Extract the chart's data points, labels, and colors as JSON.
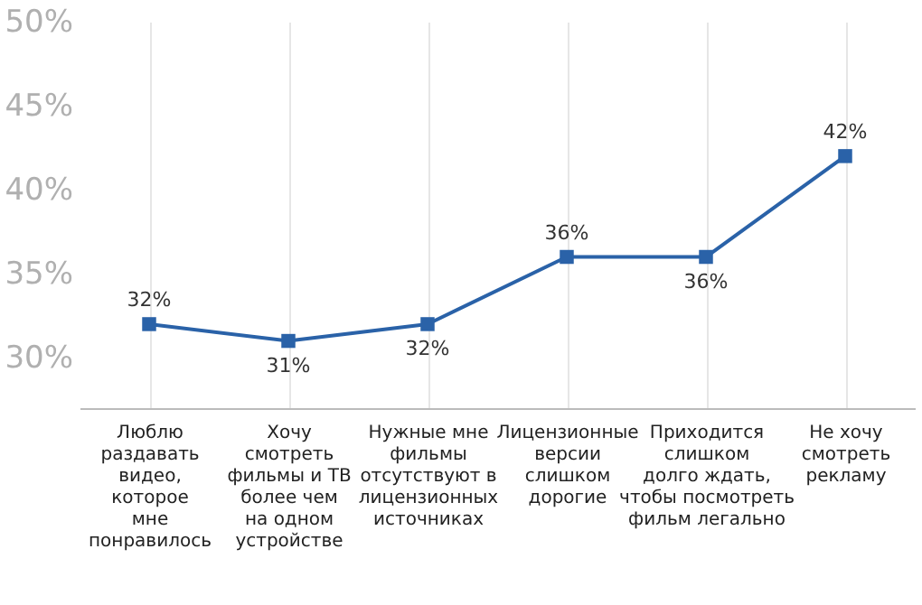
{
  "chart_data": {
    "type": "line",
    "categories": [
      "Люблю\nраздавать\nвидео,\nкоторое\nмне\nпонравилось",
      "Хочу\nсмотреть\nфильмы и ТВ\nболее чем\nна одном\nустройстве",
      "Нужные мне\nфильмы\nотсутствуют в\nлицензионных\nисточниках",
      "Лицензионные\nверсии\nслишком\nдорогие",
      "Приходится\nслишком\nдолго ждать,\nчтобы посмотреть\nфильм легально",
      "Не хочу\nсмотреть\nрекламу"
    ],
    "series": [
      {
        "color": "#2a62a8",
        "values": [
          32,
          31,
          32,
          36,
          36,
          42
        ],
        "value_labels": [
          "32%",
          "31%",
          "32%",
          "36%",
          "36%",
          "42%"
        ]
      }
    ],
    "ylim": [
      27,
      50
    ],
    "yticks": [
      {
        "value": 30,
        "label": "30%"
      },
      {
        "value": 35,
        "label": "35%"
      },
      {
        "value": 40,
        "label": "40%"
      },
      {
        "value": 45,
        "label": "45%"
      },
      {
        "value": 50,
        "label": "50%"
      }
    ],
    "marker": "square",
    "grid": "x"
  }
}
